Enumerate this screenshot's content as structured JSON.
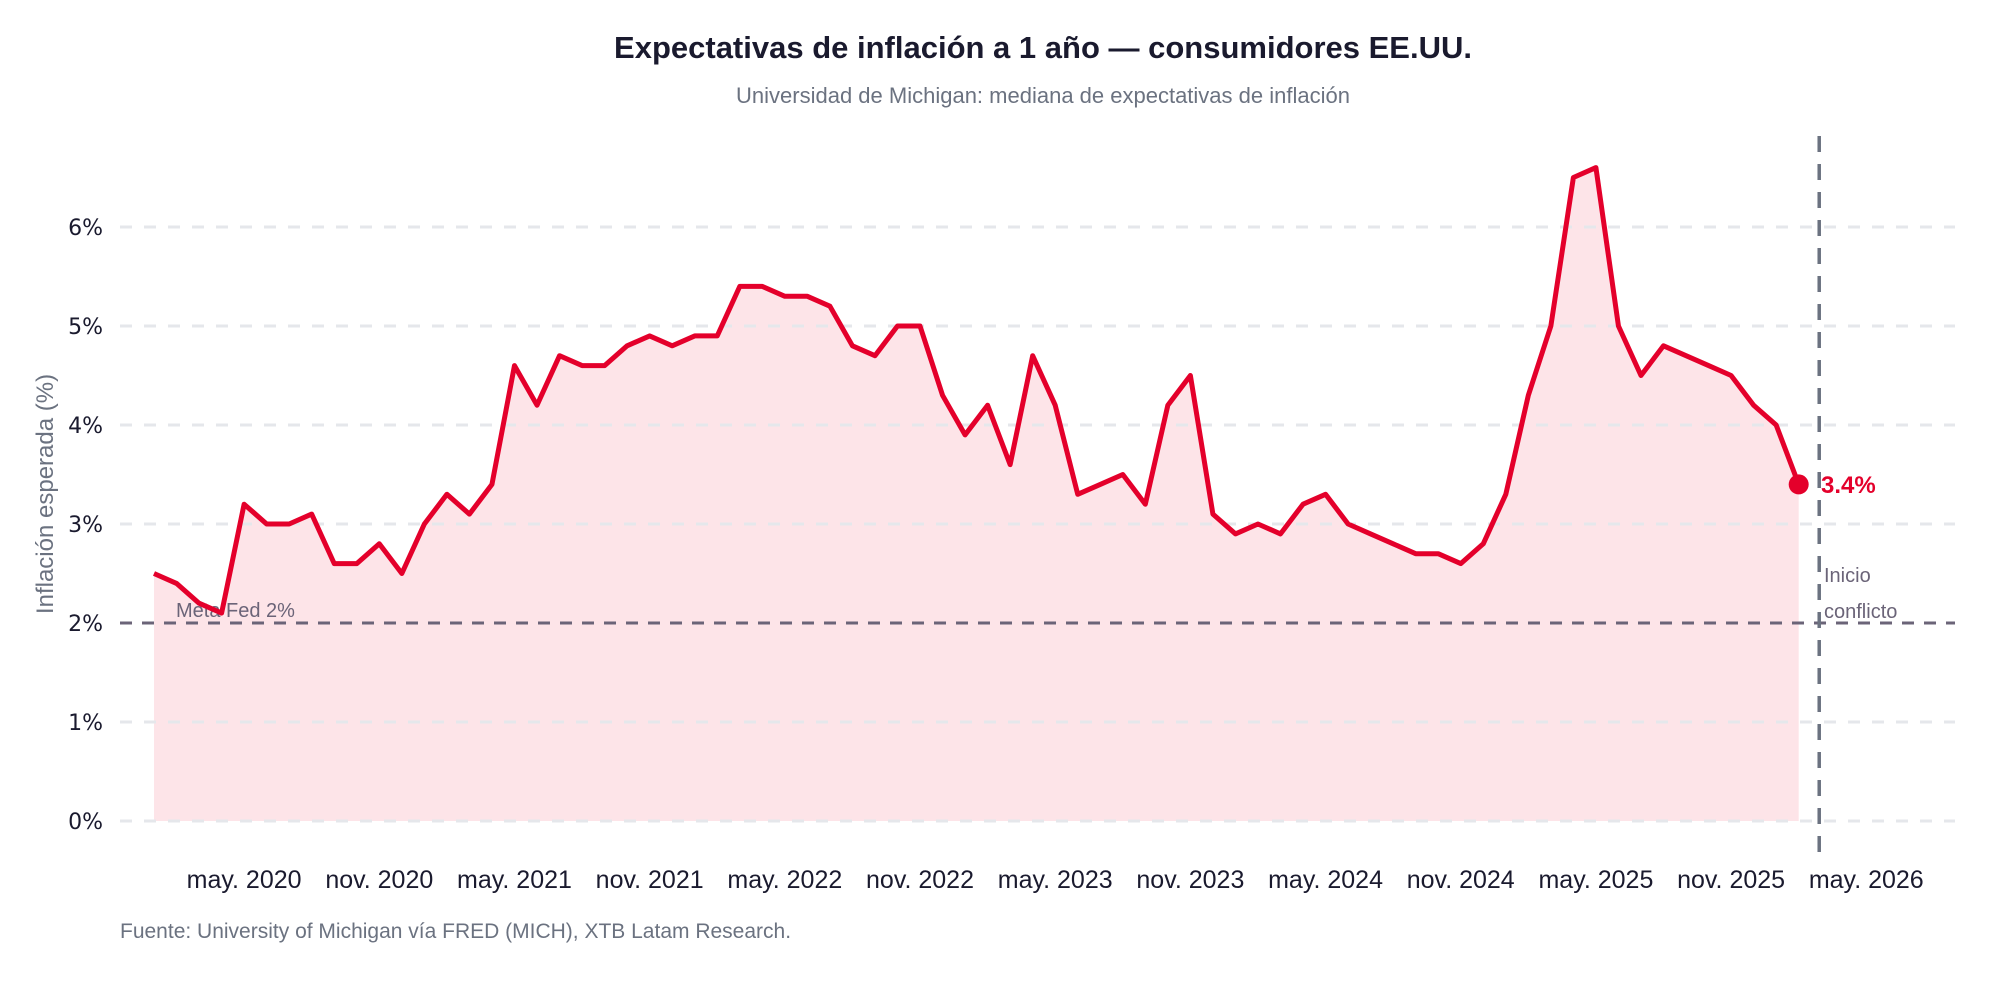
{
  "chart_data": {
    "type": "line",
    "title": "Expectativas de inflación a 1 año — consumidores EE.UU.",
    "subtitle": "Universidad de Michigan: mediana de expectativas de inflación",
    "xlabel": "",
    "ylabel": "Inflación esperada (%)",
    "source": "Fuente: University of Michigan vía FRED (MICH), XTB Latam Research.",
    "ylim": [
      0,
      7
    ],
    "yticks": [
      0,
      1,
      2,
      3,
      4,
      5,
      6
    ],
    "ytick_labels": [
      "0%",
      "1%",
      "2%",
      "3%",
      "4%",
      "5%",
      "6%"
    ],
    "xlim": [
      "2019-12",
      "2026-09"
    ],
    "xticks": [
      "2020-05",
      "2020-11",
      "2021-05",
      "2021-11",
      "2022-05",
      "2022-11",
      "2023-05",
      "2023-11",
      "2024-05",
      "2024-11",
      "2025-05",
      "2025-11",
      "2026-05"
    ],
    "xtick_labels": [
      "may. 2020",
      "nov. 2020",
      "may. 2021",
      "nov. 2021",
      "may. 2022",
      "nov. 2022",
      "may. 2023",
      "nov. 2023",
      "may. 2024",
      "nov. 2024",
      "may. 2025",
      "nov. 2025",
      "may. 2026"
    ],
    "grid": true,
    "area_fill": true,
    "x_start": "2020-01",
    "x_frequency": "monthly",
    "series": [
      {
        "values": [
          2.5,
          2.4,
          2.2,
          2.1,
          3.2,
          3.0,
          3.0,
          3.1,
          2.6,
          2.6,
          2.8,
          2.5,
          3.0,
          3.3,
          3.1,
          3.4,
          4.6,
          4.2,
          4.7,
          4.6,
          4.6,
          4.8,
          4.9,
          4.8,
          4.9,
          4.9,
          5.4,
          5.4,
          5.3,
          5.3,
          5.2,
          4.8,
          4.7,
          5.0,
          5.0,
          4.3,
          3.9,
          4.2,
          3.6,
          4.7,
          4.2,
          3.3,
          3.4,
          3.5,
          3.2,
          4.2,
          4.5,
          3.1,
          2.9,
          3.0,
          2.9,
          3.2,
          3.3,
          3.0,
          2.9,
          2.8,
          2.7,
          2.7,
          2.6,
          2.8,
          3.3,
          4.3,
          5.0,
          6.5,
          6.6,
          5.0,
          4.5,
          4.8,
          4.7,
          4.6,
          4.5,
          4.2,
          4.0,
          3.4
        ]
      }
    ],
    "last_value_label": "3.4%",
    "reference_line": {
      "value": 2,
      "label": "Meta Fed 2%"
    },
    "event_line": {
      "x": "2026-03",
      "label_line1": "Inicio",
      "label_line2": "conflicto"
    },
    "colors": {
      "line": "#e4002b",
      "fill": "#fde4e8",
      "grid": "#e5e7eb",
      "reference": "#6b6478",
      "event": "#6b7280",
      "text": "#1a1a2e",
      "muted": "#6b7280"
    }
  }
}
